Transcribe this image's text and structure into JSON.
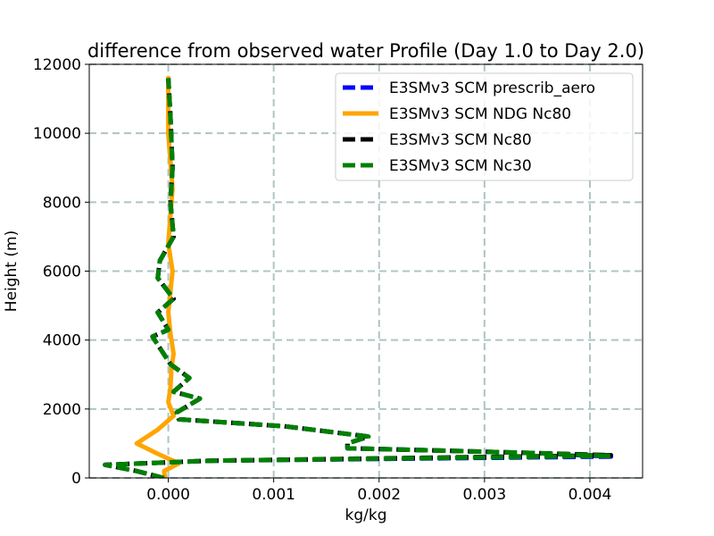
{
  "chart_data": {
    "type": "line",
    "title": "difference from observed water Profile (Day 1.0 to Day 2.0)",
    "xlabel": "kg/kg",
    "ylabel": "Height (m)",
    "xlim": [
      -0.00075,
      0.0045
    ],
    "ylim": [
      0,
      12000
    ],
    "xticks": [
      0.0,
      0.001,
      0.002,
      0.003,
      0.004
    ],
    "xtick_labels": [
      "0.000",
      "0.001",
      "0.002",
      "0.003",
      "0.004"
    ],
    "yticks": [
      0,
      2000,
      4000,
      6000,
      8000,
      10000,
      12000
    ],
    "ytick_labels": [
      "0",
      "2000",
      "4000",
      "6000",
      "8000",
      "10000",
      "12000"
    ],
    "grid": true,
    "legend_position": "top-right",
    "series": [
      {
        "name": "E3SMv3 SCM prescrib_aero",
        "color": "#0000ff",
        "style": "dashed",
        "x": [
          -5e-05,
          -0.0003,
          -0.0006,
          0.0004,
          0.0042,
          0.0035,
          0.0025,
          0.0017,
          0.0017,
          0.0019,
          0.0011,
          0.0001,
          8e-05,
          0.0003,
          5e-05,
          0.0002,
          2e-05,
          -0.00015,
          0.0,
          -0.0001,
          5e-05,
          -0.0001,
          -8e-05,
          5e-05,
          2e-05,
          4e-05,
          2e-05,
          0.0
        ],
        "y": [
          0,
          200,
          380,
          500,
          620,
          720,
          800,
          860,
          1000,
          1200,
          1500,
          1700,
          1900,
          2300,
          2500,
          2900,
          3300,
          4100,
          4300,
          4800,
          5200,
          5800,
          6300,
          7000,
          8000,
          9000,
          10500,
          11600
        ]
      },
      {
        "name": "E3SMv3 SCM NDG Nc80",
        "color": "#ffa500",
        "style": "solid",
        "x": [
          -3e-05,
          -4e-05,
          0.0001,
          -0.0001,
          -0.0003,
          -0.0001,
          5e-05,
          0.0,
          2e-05,
          3e-05,
          5e-05,
          2e-05,
          0.0,
          2e-05,
          4e-05,
          0.0,
          2e-05,
          4e-05,
          0.0,
          0.0
        ],
        "y": [
          0,
          200,
          420,
          700,
          1000,
          1400,
          1800,
          2200,
          2600,
          3200,
          3600,
          4200,
          4800,
          5400,
          6000,
          6800,
          7600,
          8400,
          10000,
          11600
        ]
      },
      {
        "name": "E3SMv3 SCM Nc80",
        "color": "#000000",
        "style": "dashed",
        "x": [
          -5e-05,
          -0.0003,
          -0.0006,
          0.0004,
          0.0042,
          0.0035,
          0.0025,
          0.0017,
          0.0017,
          0.0019,
          0.0011,
          0.0001,
          8e-05,
          0.0003,
          5e-05,
          0.0002,
          2e-05,
          -0.00015,
          0.0,
          -0.0001,
          5e-05,
          -0.0001,
          -8e-05,
          5e-05,
          2e-05,
          4e-05,
          2e-05,
          0.0
        ],
        "y": [
          0,
          200,
          380,
          500,
          660,
          720,
          800,
          860,
          1000,
          1200,
          1500,
          1700,
          1900,
          2300,
          2500,
          2900,
          3300,
          4100,
          4300,
          4800,
          5200,
          5800,
          6300,
          7000,
          8000,
          9000,
          10500,
          11600
        ]
      },
      {
        "name": "E3SMv3 SCM Nc30",
        "color": "#008000",
        "style": "dashed",
        "x": [
          -4e-05,
          -0.0003,
          -0.0006,
          0.0004,
          0.0042,
          0.0035,
          0.0025,
          0.0017,
          0.0017,
          0.0019,
          0.0011,
          0.0001,
          8e-05,
          0.0003,
          5e-05,
          0.0002,
          2e-05,
          -0.00015,
          0.0,
          -0.0001,
          5e-05,
          -0.0001,
          -8e-05,
          5e-05,
          2e-05,
          4e-05,
          2e-05,
          0.0
        ],
        "y": [
          0,
          200,
          380,
          500,
          640,
          720,
          800,
          860,
          1000,
          1200,
          1500,
          1700,
          1900,
          2300,
          2500,
          2900,
          3300,
          4100,
          4300,
          4800,
          5200,
          5800,
          6300,
          7000,
          8000,
          9000,
          10500,
          11600
        ]
      }
    ]
  }
}
